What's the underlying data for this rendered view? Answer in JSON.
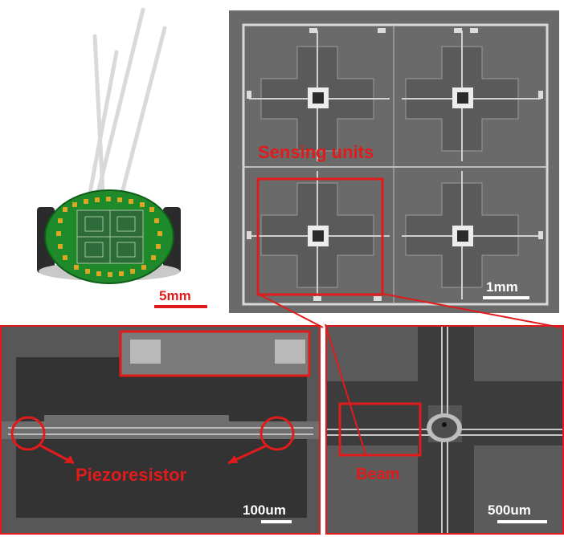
{
  "labels": {
    "sensing_units": "Sensing units",
    "piezoresistor": "Piezoresistor",
    "beam": "Beam"
  },
  "scale_bars": {
    "photo": "5mm",
    "overview": "1mm",
    "piezo": "100um",
    "beam": "500um"
  },
  "colors": {
    "annotation": "#e11b1b",
    "pcb": "#1f8a2a",
    "sem_background": "#5a5a5a"
  }
}
